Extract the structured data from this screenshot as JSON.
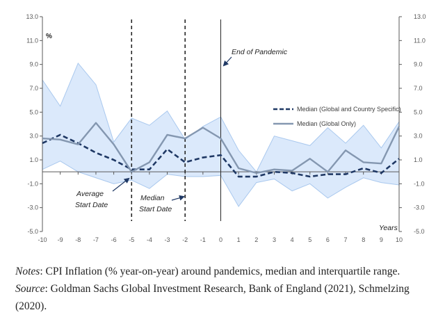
{
  "chart_data": {
    "type": "line",
    "unit_label": "%",
    "xlabel": "Years",
    "x": [
      -10,
      -9,
      -8,
      -7,
      -6,
      -5,
      -4,
      -3,
      -2,
      -1,
      0,
      1,
      2,
      3,
      4,
      5,
      6,
      7,
      8,
      9,
      10
    ],
    "ylim": [
      -5.0,
      13.0
    ],
    "yticks": [
      "13.0",
      "11.0",
      "9.0",
      "7.0",
      "5.0",
      "3.0",
      "1.0",
      "-1.0",
      "-3.0",
      "-5.0"
    ],
    "xticks": [
      "-10",
      "-9",
      "-8",
      "-7",
      "-6",
      "-5",
      "-4",
      "-3",
      "-2",
      "-1",
      "0",
      "1",
      "2",
      "3",
      "4",
      "5",
      "6",
      "7",
      "8",
      "9",
      "10"
    ],
    "series": [
      {
        "name": "Median (Global and Country Specific)",
        "style": "dashed",
        "color": "#1f3864",
        "values": [
          2.4,
          3.1,
          2.4,
          1.6,
          1.0,
          0.2,
          0.2,
          1.9,
          0.8,
          1.2,
          1.4,
          -0.4,
          -0.4,
          0.0,
          -0.1,
          -0.4,
          -0.2,
          -0.2,
          0.3,
          -0.1,
          1.1
        ]
      },
      {
        "name": "Median (Global Only)",
        "style": "solid",
        "color": "#8497b0",
        "values": [
          2.8,
          2.7,
          2.3,
          4.1,
          2.3,
          0.0,
          0.8,
          3.1,
          2.8,
          3.7,
          2.8,
          0.3,
          -0.1,
          0.2,
          0.1,
          1.1,
          0.0,
          1.8,
          0.8,
          0.7,
          3.8
        ]
      }
    ],
    "band": {
      "name": "Interquartile range",
      "upper": [
        7.7,
        5.5,
        9.1,
        7.3,
        2.5,
        4.5,
        3.9,
        5.1,
        2.7,
        3.8,
        4.6,
        1.8,
        0.0,
        3.0,
        2.6,
        2.2,
        3.7,
        2.4,
        3.9,
        2.0,
        4.2
      ],
      "lower": [
        0.2,
        0.9,
        0.0,
        -0.5,
        -1.0,
        -0.7,
        -1.4,
        -0.2,
        -0.4,
        -0.4,
        -0.3,
        -2.9,
        -0.9,
        -0.6,
        -1.6,
        -1.0,
        -2.2,
        -1.3,
        -0.5,
        -0.9,
        -1.1
      ]
    },
    "vlines": [
      {
        "x": -5,
        "style": "dashed"
      },
      {
        "x": -2,
        "style": "dashed"
      },
      {
        "x": 0,
        "style": "solid"
      }
    ],
    "annotations": {
      "end_of_pandemic": "End of Pandemic",
      "average_start_line1": "Average",
      "average_start_line2": "Start Date",
      "median_start_line1": "Median",
      "median_start_line2": "Start Date",
      "years": "Years",
      "percent": "%"
    },
    "colors": {
      "band_fill": "#dbe9fb",
      "band_stroke": "#a9c8ee",
      "axis": "#595959"
    }
  },
  "notes": {
    "notes_label": "Notes",
    "notes_text": ": CPI Inflation (% year-on-year) around pandemics, median and interquartile range.",
    "source_label": "Source",
    "source_text": ": Goldman Sachs Global Investment Research, Bank of England (2021), Schmelzing (2020)."
  }
}
